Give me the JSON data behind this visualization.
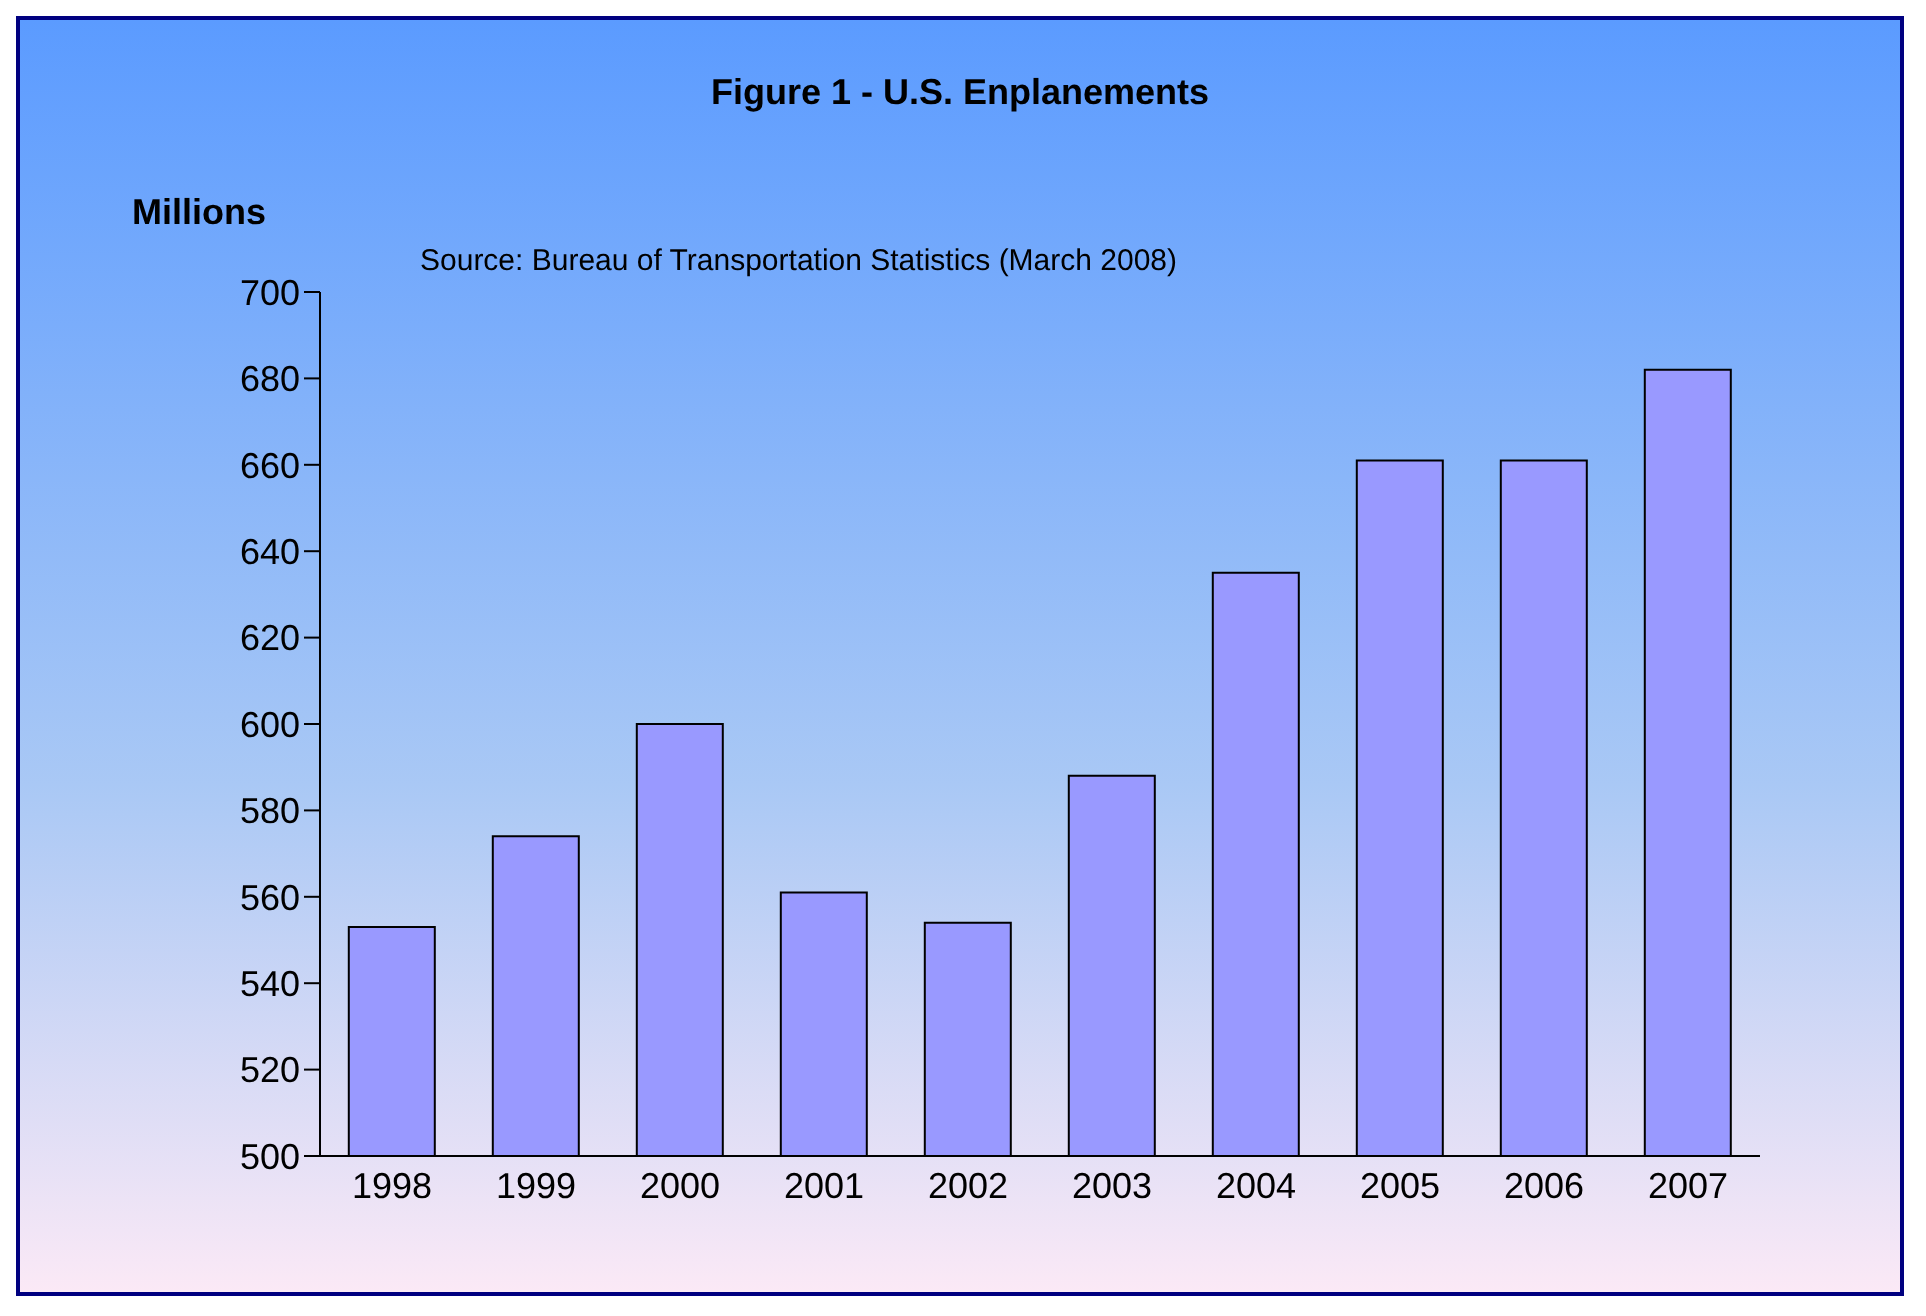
{
  "chart_data": {
    "type": "bar",
    "title": "Figure 1 - U.S. Enplanements",
    "ylabel": "Millions",
    "annotations": [
      "Source: Bureau of Transportation Statistics (March 2008)"
    ],
    "categories": [
      "1998",
      "1999",
      "2000",
      "2001",
      "2002",
      "2003",
      "2004",
      "2005",
      "2006",
      "2007"
    ],
    "values": [
      553,
      574,
      600,
      561,
      554,
      588,
      635,
      661,
      661,
      682
    ],
    "color": "#9999ff",
    "ylim": [
      500,
      700
    ],
    "yticks": [
      500,
      520,
      540,
      560,
      580,
      600,
      620,
      640,
      660,
      680,
      700
    ],
    "grid": false,
    "legend": false
  }
}
